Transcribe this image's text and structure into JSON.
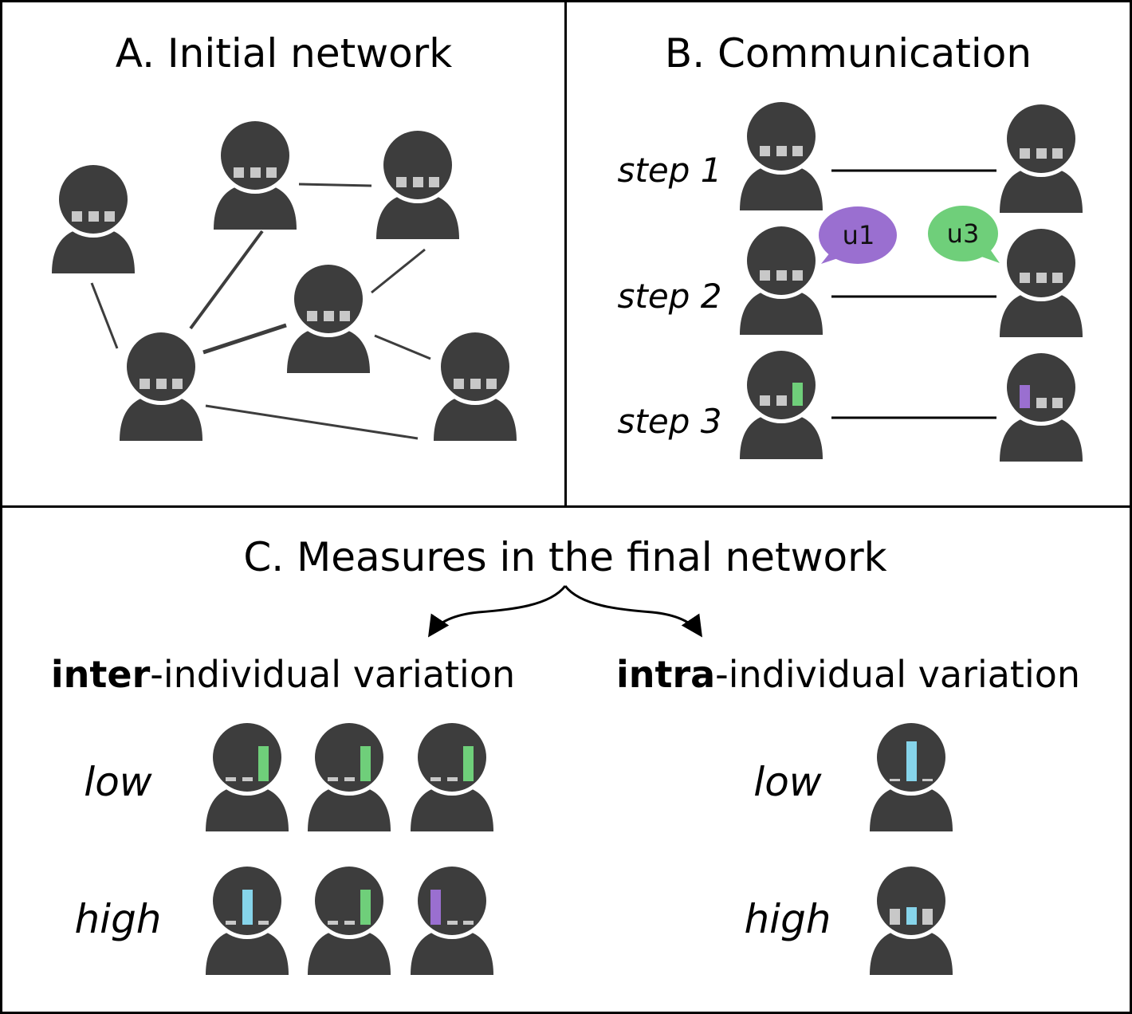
{
  "panels": {
    "a": {
      "title": "A. Initial network"
    },
    "b": {
      "title": "B. Communication",
      "steps": [
        "step 1",
        "step 2",
        "step 3"
      ],
      "bubbles": [
        {
          "text": "u1",
          "color": "#9a6fd0"
        },
        {
          "text": "u3",
          "color": "#6fcf7a"
        }
      ]
    },
    "c": {
      "title": "C. Measures in the final network",
      "inter": {
        "bold": "inter",
        "rest": "-individual variation"
      },
      "intra": {
        "bold": "intra",
        "rest": "-individual variation"
      },
      "levels": [
        "low",
        "high"
      ]
    }
  },
  "colors": {
    "figure": "#3d3d3d",
    "slot_gray": "#c8c8c8",
    "green": "#6fcf7a",
    "purple": "#9a6fd0",
    "blue": "#86d4ea"
  }
}
